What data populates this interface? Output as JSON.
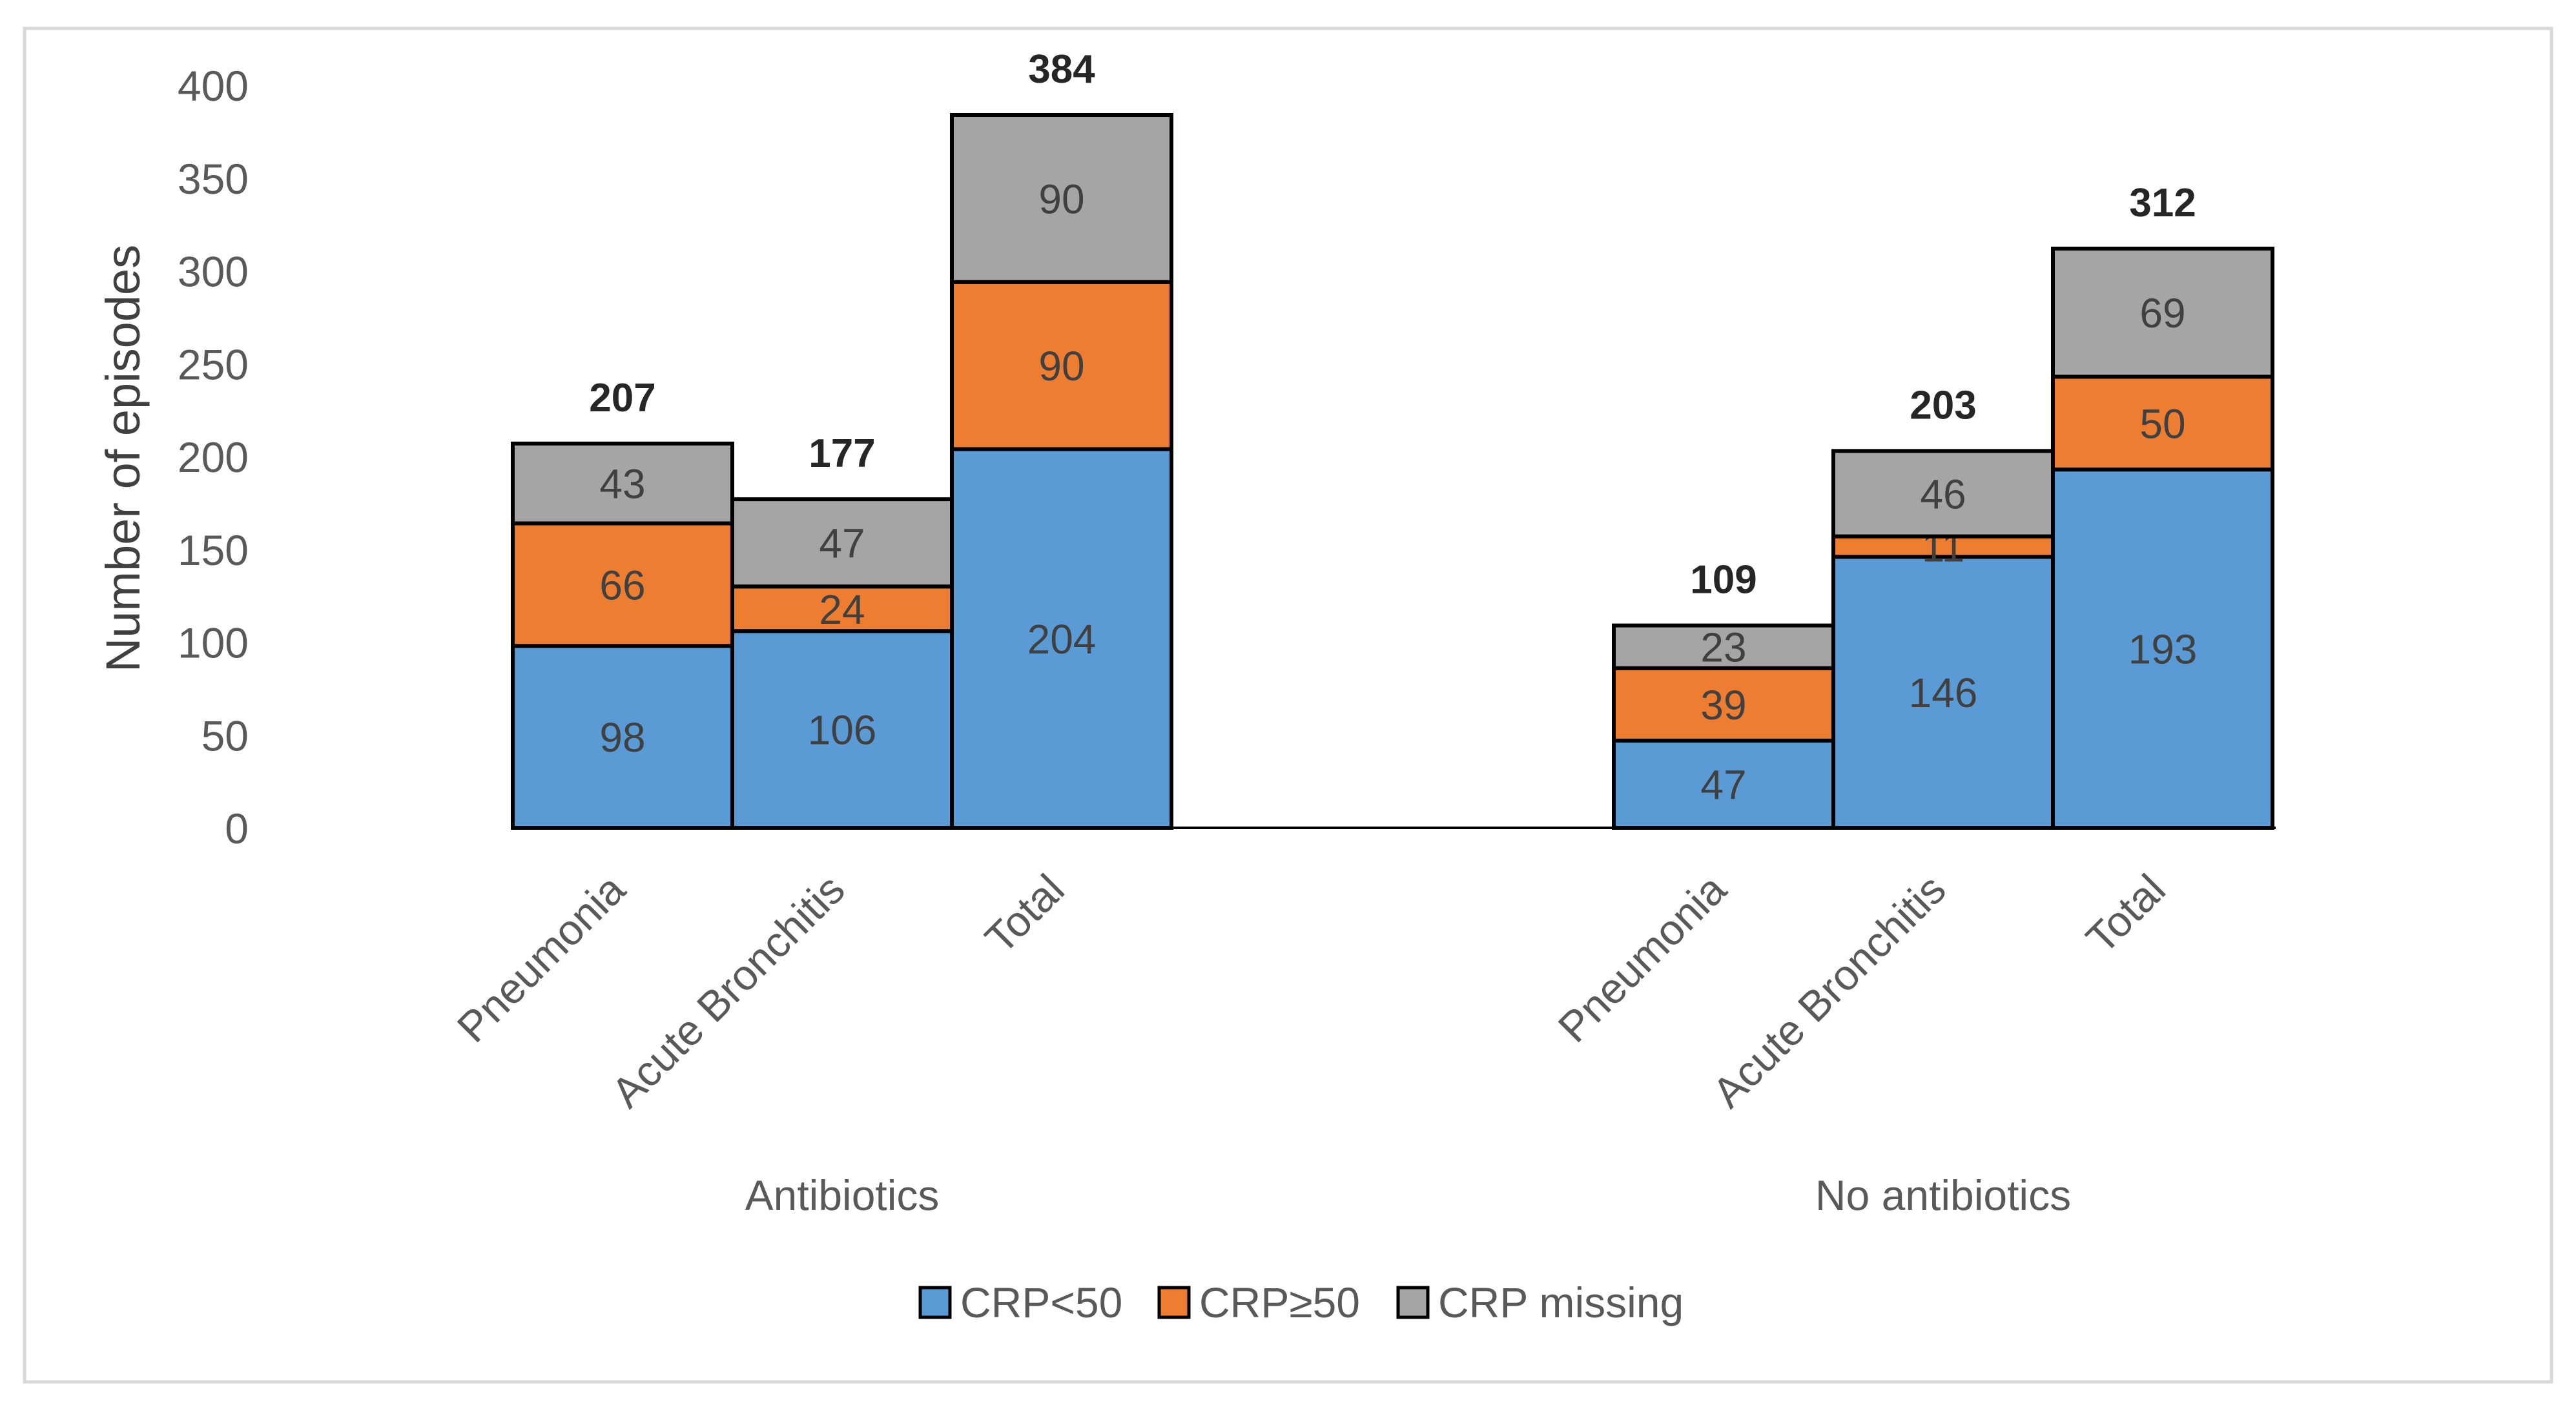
{
  "chart_data": {
    "type": "bar",
    "stacked": true,
    "ylabel": "Number of episodes",
    "ylim": [
      0,
      400
    ],
    "ytick_step": 50,
    "yticks": [
      "0",
      "50",
      "100",
      "150",
      "200",
      "250",
      "300",
      "350",
      "400"
    ],
    "legend_position": "bottom",
    "series": [
      {
        "name": "CRP<50",
        "color": "#5B9BD5"
      },
      {
        "name": "CRP≥50",
        "color": "#ED7D31"
      },
      {
        "name": "CRP missing",
        "color": "#A5A5A5"
      }
    ],
    "groups": [
      {
        "name": "Antibiotics",
        "categories": [
          "Pneumonia",
          "Acute Bronchitis",
          "Total"
        ],
        "values": [
          [
            98,
            106,
            204
          ],
          [
            66,
            24,
            90
          ],
          [
            43,
            47,
            90
          ]
        ],
        "totals": [
          "207",
          "177",
          "384"
        ]
      },
      {
        "name": "No antibiotics",
        "categories": [
          "Pneumonia",
          "Acute Bronchitis",
          "Total"
        ],
        "values": [
          [
            47,
            146,
            193
          ],
          [
            39,
            11,
            50
          ],
          [
            23,
            46,
            69
          ]
        ],
        "totals": [
          "109",
          "203",
          "312"
        ]
      }
    ]
  }
}
